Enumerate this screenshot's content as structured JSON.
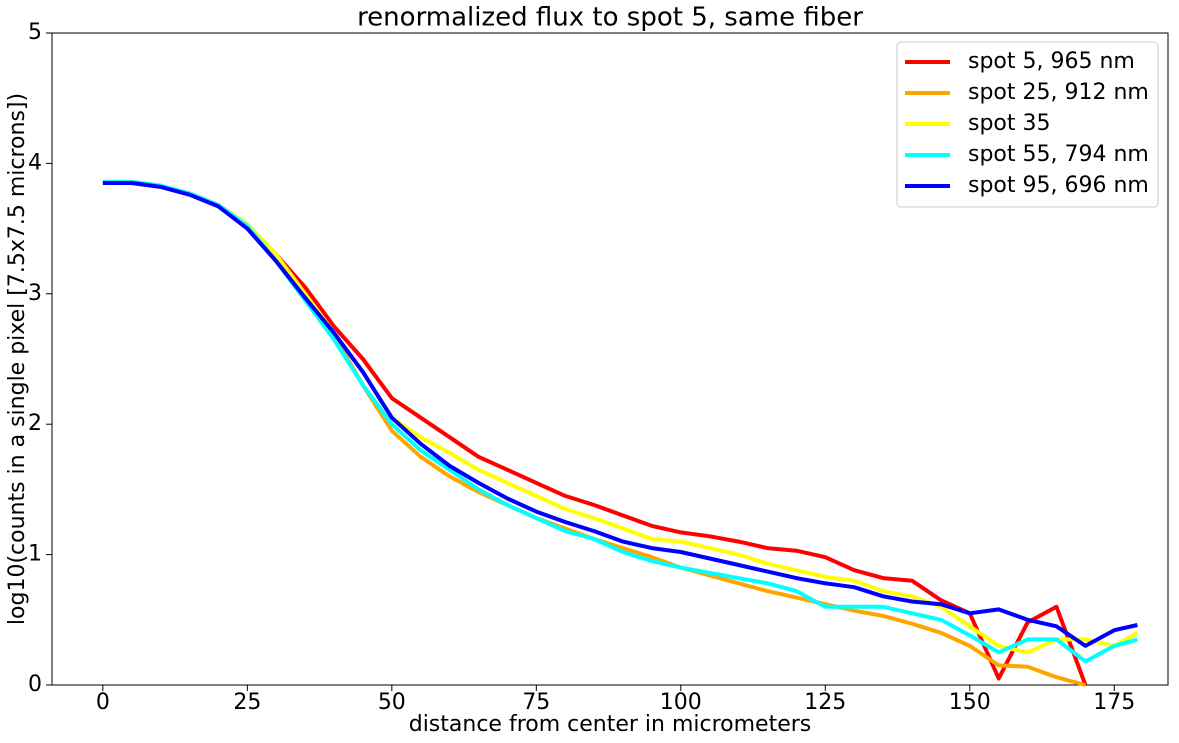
{
  "chart_data": {
    "type": "line",
    "title": "renormalized flux to spot 5, same fiber",
    "x_label": "distance from center in micrometers",
    "y_label": "log10(counts in a single pixel [7.5x7.5 microns])",
    "x": [
      0,
      5,
      10,
      15,
      20,
      25,
      30,
      35,
      40,
      45,
      50,
      55,
      60,
      65,
      70,
      75,
      80,
      85,
      90,
      95,
      100,
      105,
      110,
      115,
      120,
      125,
      130,
      135,
      140,
      145,
      150,
      155,
      160,
      165,
      170,
      175,
      179
    ],
    "series": [
      {
        "name": "spot 5, 965 nm",
        "color": "#ff0000",
        "values": [
          3.85,
          3.85,
          3.82,
          3.77,
          3.68,
          3.53,
          3.3,
          3.05,
          2.75,
          2.5,
          2.2,
          2.05,
          1.9,
          1.75,
          1.65,
          1.55,
          1.45,
          1.38,
          1.3,
          1.22,
          1.17,
          1.14,
          1.1,
          1.05,
          1.03,
          0.98,
          0.88,
          0.82,
          0.8,
          0.65,
          0.55,
          0.05,
          0.48,
          0.6,
          0.0,
          null,
          null
        ]
      },
      {
        "name": "spot 25, 912 nm",
        "color": "#ffa500",
        "values": [
          3.85,
          3.85,
          3.82,
          3.77,
          3.68,
          3.53,
          3.28,
          3.0,
          2.68,
          2.3,
          1.95,
          1.75,
          1.6,
          1.48,
          1.38,
          1.28,
          1.2,
          1.12,
          1.05,
          0.98,
          0.9,
          0.84,
          0.78,
          0.72,
          0.67,
          0.62,
          0.57,
          0.53,
          0.47,
          0.4,
          0.3,
          0.15,
          0.14,
          0.06,
          0.0,
          null,
          null
        ]
      },
      {
        "name": "spot 35",
        "color": "#ffff00",
        "values": [
          3.85,
          3.85,
          3.82,
          3.77,
          3.68,
          3.53,
          3.3,
          3.0,
          2.7,
          2.4,
          2.05,
          1.9,
          1.78,
          1.65,
          1.55,
          1.45,
          1.35,
          1.28,
          1.2,
          1.12,
          1.1,
          1.05,
          1.0,
          0.93,
          0.88,
          0.83,
          0.8,
          0.72,
          0.68,
          0.6,
          0.45,
          0.3,
          0.25,
          0.35,
          0.35,
          0.3,
          0.4
        ]
      },
      {
        "name": "spot 55, 794 nm",
        "color": "#00ffff",
        "values": [
          3.86,
          3.86,
          3.83,
          3.77,
          3.68,
          3.52,
          3.25,
          2.95,
          2.65,
          2.3,
          2.0,
          1.8,
          1.65,
          1.5,
          1.38,
          1.28,
          1.18,
          1.12,
          1.02,
          0.95,
          0.9,
          0.86,
          0.82,
          0.78,
          0.72,
          0.6,
          0.6,
          0.6,
          0.55,
          0.5,
          0.38,
          0.25,
          0.35,
          0.35,
          0.18,
          0.3,
          0.35
        ]
      },
      {
        "name": "spot 95, 696 nm",
        "color": "#0000ff",
        "values": [
          3.85,
          3.85,
          3.82,
          3.76,
          3.67,
          3.5,
          3.25,
          2.97,
          2.7,
          2.4,
          2.05,
          1.85,
          1.68,
          1.55,
          1.43,
          1.33,
          1.25,
          1.18,
          1.1,
          1.05,
          1.02,
          0.97,
          0.92,
          0.87,
          0.82,
          0.78,
          0.75,
          0.68,
          0.64,
          0.62,
          0.55,
          0.58,
          0.5,
          0.45,
          0.3,
          0.42,
          0.46
        ]
      }
    ],
    "xlim": [
      -8.8,
      184.3
    ],
    "ylim": [
      0,
      5
    ],
    "xticks": [
      0,
      25,
      50,
      75,
      100,
      125,
      150,
      175
    ],
    "yticks": [
      0,
      1,
      2,
      3,
      4,
      5
    ],
    "grid": false,
    "legend": "upper right"
  }
}
